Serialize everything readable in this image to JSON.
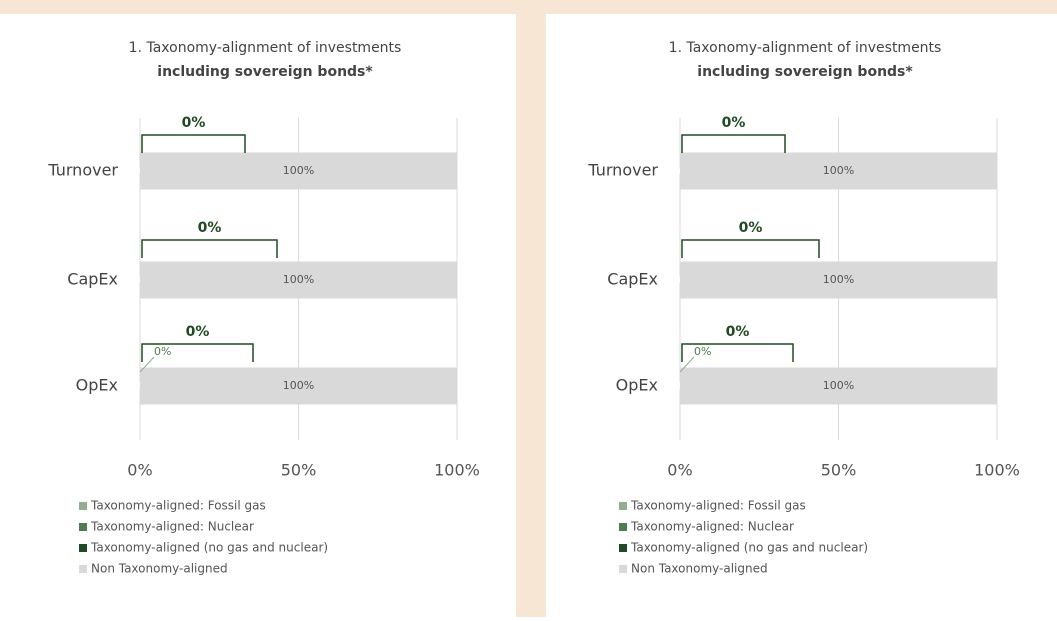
{
  "chart_data": [
    {
      "type": "bar",
      "orientation": "horizontal",
      "stacked": true,
      "title": "1. Taxonomy-alignment of investments",
      "subtitle": "including sovereign bonds*",
      "categories": [
        "Turnover",
        "CapEx",
        "OpEx"
      ],
      "series": [
        {
          "name": "Taxonomy-aligned: Fossil gas",
          "color": "#8faf8f",
          "values": [
            0,
            0,
            0
          ]
        },
        {
          "name": "Taxonomy-aligned: Nuclear",
          "color": "#4f7d50",
          "values": [
            0,
            0,
            0
          ]
        },
        {
          "name": "Taxonomy-aligned (no gas and nuclear)",
          "color": "#1f4a24",
          "values": [
            0,
            0,
            0
          ],
          "value_labels": [
            "0%",
            "0%",
            "0%"
          ]
        },
        {
          "name": "Non Taxonomy-aligned",
          "color": "#d9d9d9",
          "values": [
            100,
            100,
            100
          ],
          "value_labels": [
            "100%",
            "100%",
            "100%"
          ]
        }
      ],
      "bracket_labels": [
        "0%",
        "0%",
        "0%"
      ],
      "callout": "0%",
      "xlim": [
        0,
        100
      ],
      "xticks": [
        {
          "value": 0,
          "label": "0%"
        },
        {
          "value": 50,
          "label": "50%"
        },
        {
          "value": 100,
          "label": "100%"
        }
      ],
      "grid": true
    },
    {
      "type": "bar",
      "orientation": "horizontal",
      "stacked": true,
      "title": "1. Taxonomy-alignment of investments",
      "subtitle": "including sovereign bonds*",
      "categories": [
        "Turnover",
        "CapEx",
        "OpEx"
      ],
      "series": [
        {
          "name": "Taxonomy-aligned: Fossil gas",
          "color": "#8faf8f",
          "values": [
            0,
            0,
            0
          ]
        },
        {
          "name": "Taxonomy-aligned: Nuclear",
          "color": "#4f7d50",
          "values": [
            0,
            0,
            0
          ]
        },
        {
          "name": "Taxonomy-aligned (no gas and nuclear)",
          "color": "#1f4a24",
          "values": [
            0,
            0,
            0
          ],
          "value_labels": [
            "0%",
            "0%",
            "0%"
          ]
        },
        {
          "name": "Non Taxonomy-aligned",
          "color": "#d9d9d9",
          "values": [
            100,
            100,
            100
          ],
          "value_labels": [
            "100%",
            "100%",
            "100%"
          ]
        }
      ],
      "bracket_labels": [
        "0%",
        "0%",
        "0%"
      ],
      "callout": "0%",
      "xlim": [
        0,
        100
      ],
      "xticks": [
        {
          "value": 0,
          "label": "0%"
        },
        {
          "value": 50,
          "label": "50%"
        },
        {
          "value": 100,
          "label": "100%"
        }
      ],
      "grid": true
    }
  ]
}
